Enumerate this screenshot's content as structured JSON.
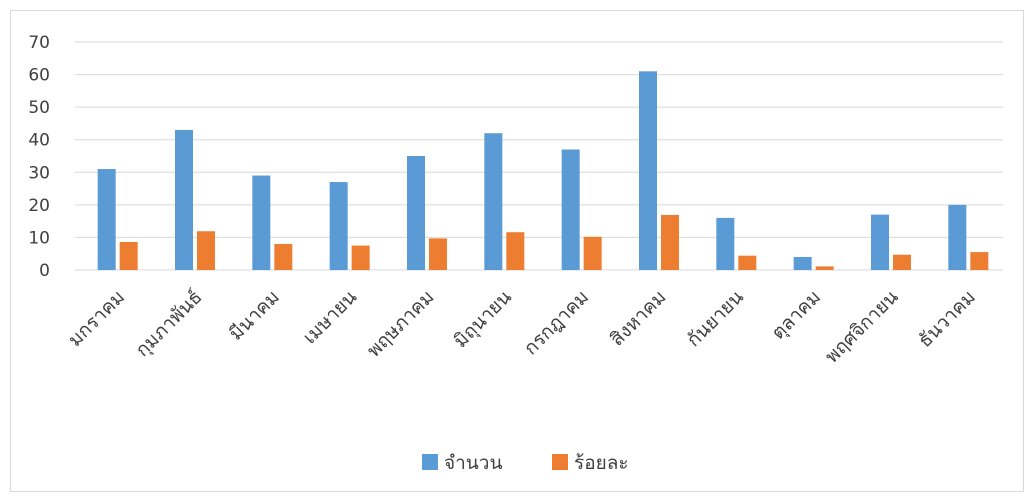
{
  "chart_data": {
    "type": "bar",
    "title": "",
    "xlabel": "",
    "ylabel": "",
    "ylim": [
      0,
      70
    ],
    "yticks": [
      0,
      10,
      20,
      30,
      40,
      50,
      60,
      70
    ],
    "grid": true,
    "legend_position": "bottom",
    "categories": [
      "มกราคม",
      "กุมภาพันธ์",
      "มีนาคม",
      "เมษายน",
      "พฤษภาคม",
      "มิถุนายน",
      "กรกฎาคม",
      "สิงหาคม",
      "กันยายน",
      "ตุลาคม",
      "พฤศจิกายน",
      "ธันวาคม"
    ],
    "series": [
      {
        "name": "จำนวน",
        "color": "#5b9bd5",
        "values": [
          31,
          43,
          29,
          27,
          35,
          42,
          37,
          61,
          16,
          4,
          17,
          20
        ]
      },
      {
        "name": "ร้อยละ",
        "color": "#ed7d31",
        "values": [
          8.6,
          11.9,
          8.0,
          7.5,
          9.7,
          11.6,
          10.2,
          16.9,
          4.4,
          1.1,
          4.7,
          5.5
        ]
      }
    ]
  }
}
